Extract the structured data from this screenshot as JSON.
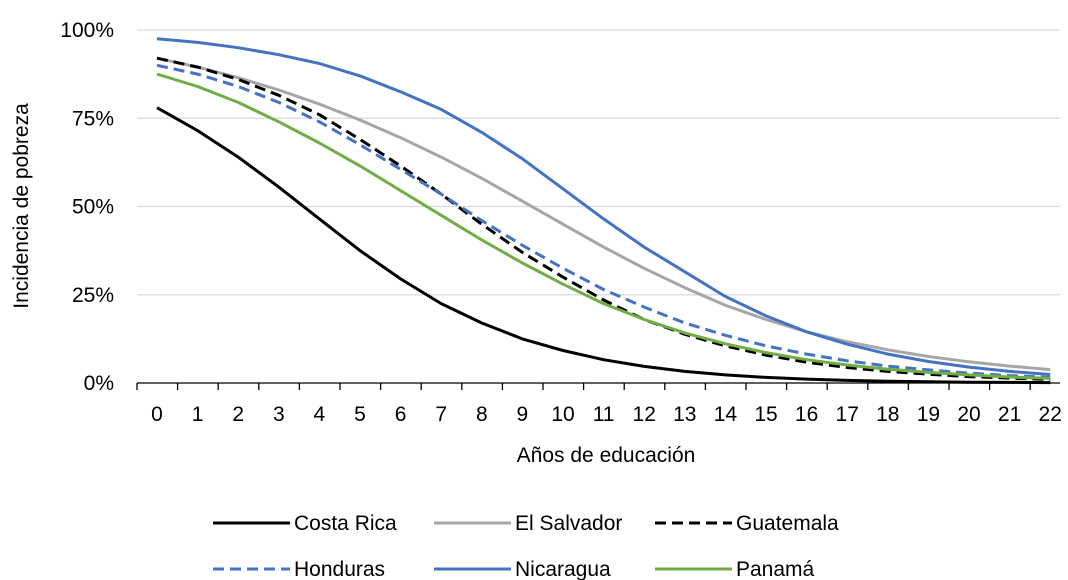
{
  "chart_data": {
    "type": "line",
    "title": "",
    "xlabel": "Años de educación",
    "ylabel": "Incidencia de pobreza",
    "x": [
      0,
      1,
      2,
      3,
      4,
      5,
      6,
      7,
      8,
      9,
      10,
      11,
      12,
      13,
      14,
      15,
      16,
      17,
      18,
      19,
      20,
      21,
      22
    ],
    "xlim": [
      0,
      22
    ],
    "ylim": [
      0,
      100
    ],
    "y_ticks": [
      0,
      25,
      50,
      75,
      100
    ],
    "y_tick_labels": [
      "0%",
      "25%",
      "50%",
      "75%",
      "100%"
    ],
    "grid": "horizontal",
    "legend_position": "bottom",
    "series": [
      {
        "name": "Costa Rica",
        "color": "#000000",
        "dash": "solid",
        "values": [
          78,
          71.5,
          64,
          55.5,
          46.5,
          37.5,
          29.5,
          22.5,
          17,
          12.5,
          9.2,
          6.6,
          4.7,
          3.3,
          2.3,
          1.6,
          1.1,
          0.75,
          0.5,
          0.35,
          0.24,
          0.17,
          0.12
        ]
      },
      {
        "name": "El Salvador",
        "color": "#a6a6a6",
        "dash": "solid",
        "values": [
          92,
          89.5,
          86.5,
          83,
          79,
          74.5,
          69.5,
          64,
          58,
          51.5,
          45,
          38.5,
          32.5,
          27,
          22,
          18,
          14.5,
          11.7,
          9.4,
          7.5,
          6,
          4.8,
          3.8
        ]
      },
      {
        "name": "Guatemala",
        "color": "#000000",
        "dash": "dashed",
        "values": [
          92,
          89.5,
          86,
          81.5,
          76,
          69,
          61.5,
          53.5,
          45,
          37,
          30,
          23.5,
          18,
          13.8,
          10.5,
          7.9,
          5.9,
          4.4,
          3.3,
          2.5,
          1.8,
          1.4,
          1
        ]
      },
      {
        "name": "Honduras",
        "color": "#4472c4",
        "dash": "dashed",
        "values": [
          90,
          87.5,
          84,
          79.5,
          74,
          67.5,
          60.5,
          53.5,
          46,
          39,
          32.5,
          26.5,
          21.5,
          17,
          13.5,
          10.5,
          8.2,
          6.3,
          4.8,
          3.7,
          2.8,
          2.1,
          1.6
        ]
      },
      {
        "name": "Nicaragua",
        "color": "#4472c4",
        "dash": "solid",
        "values": [
          97.5,
          96.5,
          95,
          93,
          90.5,
          87,
          82.5,
          77.5,
          71,
          63.5,
          55,
          46.5,
          38.5,
          31.5,
          24.5,
          19,
          14.5,
          11,
          8.2,
          6.1,
          4.5,
          3.3,
          2.4
        ]
      },
      {
        "name": "Panamá",
        "color": "#70ad47",
        "dash": "solid",
        "values": [
          87.5,
          84,
          79.5,
          74,
          68,
          61.5,
          54.5,
          47.5,
          40.5,
          34,
          28,
          22.5,
          18,
          14.2,
          11.1,
          8.6,
          6.6,
          5.1,
          3.9,
          3,
          2.3,
          1.7,
          1.3
        ]
      }
    ]
  }
}
